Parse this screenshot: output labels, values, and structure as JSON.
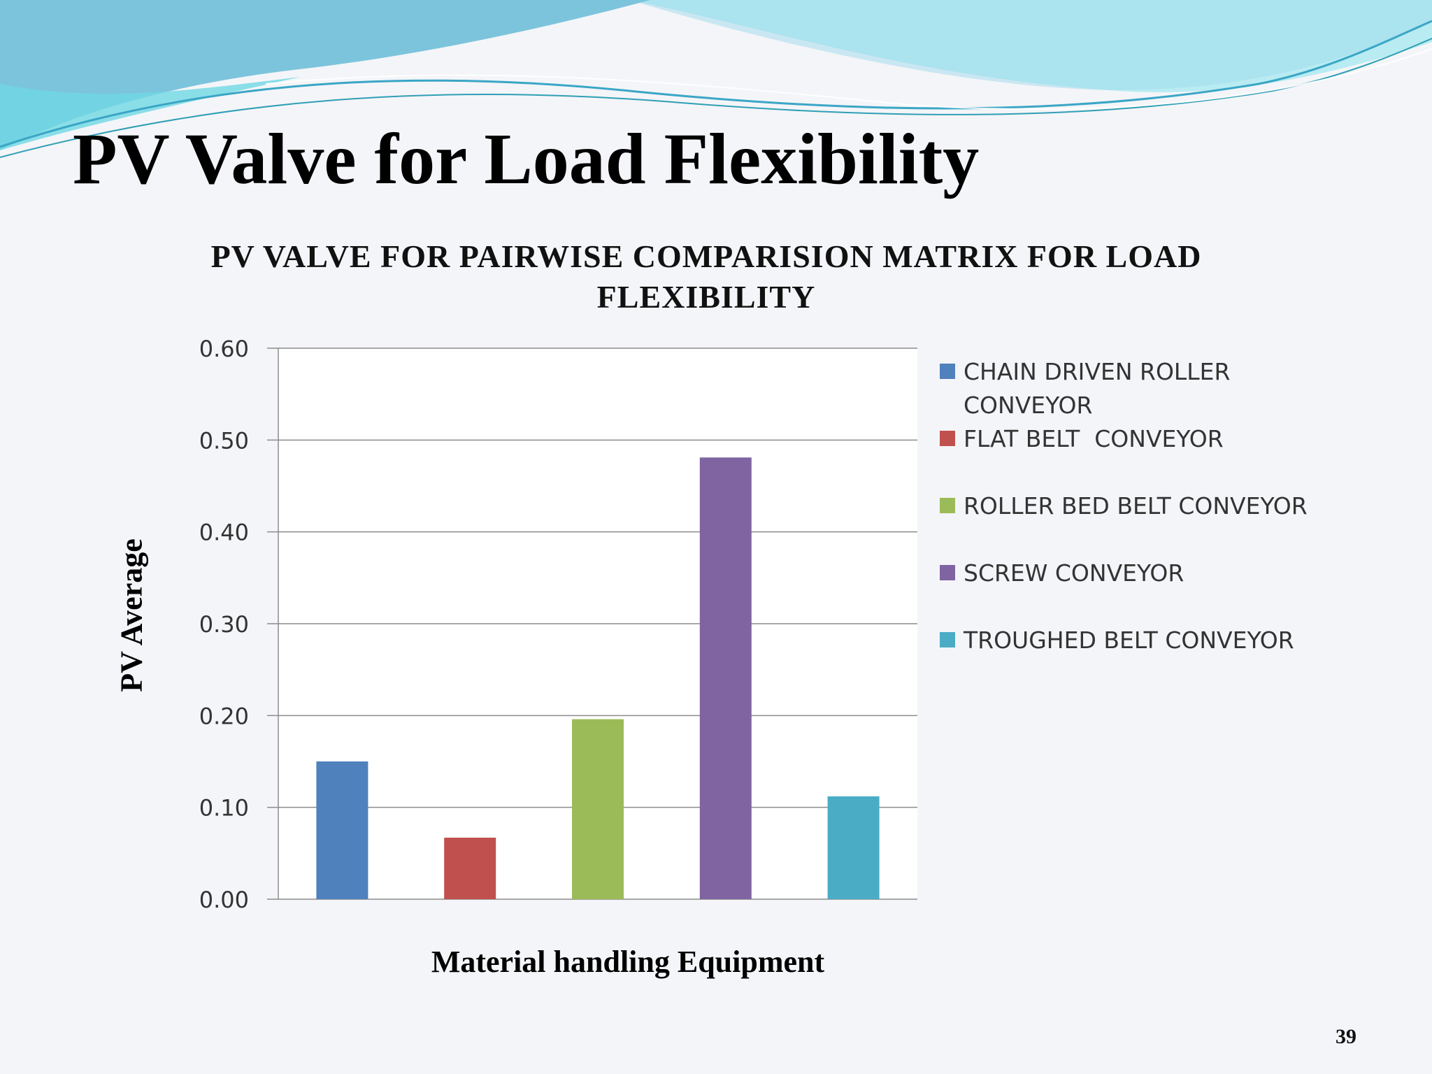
{
  "slide": {
    "title": "PV Valve for Load Flexibility",
    "page_number": "39"
  },
  "colors": {
    "background": "#f4f5f8",
    "wave_primary": "#7cc4dc",
    "wave_secondary": "#86e3ec",
    "grid": "#8c8c8c"
  },
  "chart_data": {
    "type": "bar",
    "title": "PV VALVE FOR PAIRWISE COMPARISION MATRIX FOR LOAD FLEXIBILITY",
    "xlabel": "Material handling Equipment",
    "ylabel": "PV Average",
    "ylim": [
      0,
      0.6
    ],
    "yticks": [
      "0.00",
      "0.10",
      "0.20",
      "0.30",
      "0.40",
      "0.50",
      "0.60"
    ],
    "grid": true,
    "legend_position": "right",
    "series": [
      {
        "name": "CHAIN DRIVEN ROLLER CONVEYOR",
        "value": 0.15,
        "color": "#4f81bd"
      },
      {
        "name": "FLAT BELT  CONVEYOR",
        "value": 0.067,
        "color": "#c0504d"
      },
      {
        "name": "ROLLER BED BELT CONVEYOR",
        "value": 0.196,
        "color": "#9bbb59"
      },
      {
        "name": "SCREW CONVEYOR",
        "value": 0.481,
        "color": "#8064a2"
      },
      {
        "name": "TROUGHED BELT CONVEYOR",
        "value": 0.112,
        "color": "#4bacc6"
      }
    ]
  }
}
